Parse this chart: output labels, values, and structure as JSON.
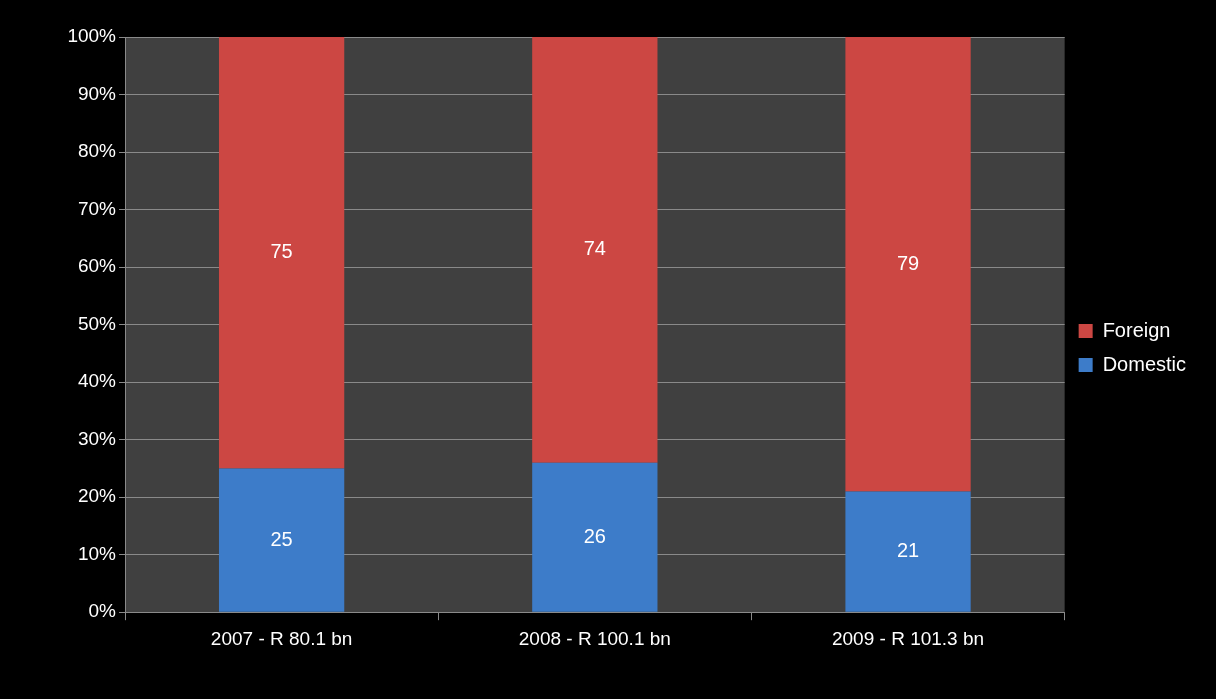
{
  "chart_data": {
    "type": "bar",
    "stacked": true,
    "categories": [
      "2007 - R 80.1 bn",
      "2008 - R 100.1 bn",
      "2009 - R 101.3 bn"
    ],
    "series": [
      {
        "name": "Domestic",
        "color": "#3d7cc9",
        "values": [
          25,
          26,
          21
        ]
      },
      {
        "name": "Foreign",
        "color": "#cc4743",
        "values": [
          75,
          74,
          79
        ]
      }
    ],
    "ylim": [
      0,
      100
    ],
    "yticks": [
      {
        "value": 0,
        "label": "0%"
      },
      {
        "value": 10,
        "label": "10%"
      },
      {
        "value": 20,
        "label": "20%"
      },
      {
        "value": 30,
        "label": "30%"
      },
      {
        "value": 40,
        "label": "40%"
      },
      {
        "value": 50,
        "label": "50%"
      },
      {
        "value": 60,
        "label": "60%"
      },
      {
        "value": 70,
        "label": "70%"
      },
      {
        "value": 80,
        "label": "80%"
      },
      {
        "value": 90,
        "label": "90%"
      },
      {
        "value": 100,
        "label": "100%"
      }
    ],
    "grid": "y",
    "legend": "right",
    "data_labels": true
  }
}
